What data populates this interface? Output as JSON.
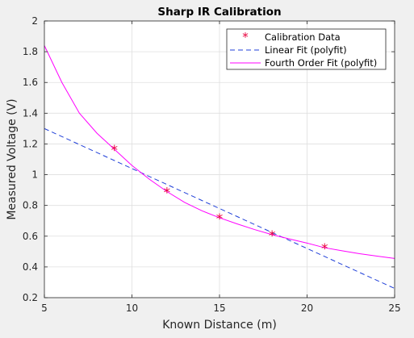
{
  "chart_data": {
    "type": "line",
    "title": "Sharp IR Calibration",
    "xlabel": "Known Distance (m)",
    "ylabel": "Measured Voltage (V)",
    "xlim": [
      5,
      25
    ],
    "ylim": [
      0.2,
      2
    ],
    "xticks": [
      5,
      10,
      15,
      20,
      25
    ],
    "yticks": [
      0.2,
      0.4,
      0.6,
      0.8,
      1,
      1.2,
      1.4,
      1.6,
      1.8,
      2
    ],
    "grid": true,
    "legend_position": "top-right",
    "series": [
      {
        "name": "Calibration Data",
        "kind": "markers",
        "marker": "*",
        "color": "#e8003c",
        "x": [
          9,
          12,
          15,
          18,
          21
        ],
        "y": [
          1.165,
          0.89,
          0.72,
          0.61,
          0.525
        ]
      },
      {
        "name": "Linear Fit (polyfit)",
        "kind": "line",
        "dash": true,
        "color": "#1f3fd8",
        "x": [
          5,
          25
        ],
        "y": [
          1.3,
          0.26
        ]
      },
      {
        "name": "Fourth Order Fit (polyfit)",
        "kind": "line",
        "dash": false,
        "color": "#ff00ff",
        "x": [
          5,
          6,
          7,
          8,
          9,
          10,
          11,
          12,
          13,
          14,
          15,
          16,
          17,
          18,
          19,
          20,
          21,
          22,
          23,
          24,
          25
        ],
        "y": [
          1.84,
          1.6,
          1.4,
          1.27,
          1.165,
          1.06,
          0.97,
          0.89,
          0.82,
          0.765,
          0.72,
          0.68,
          0.643,
          0.61,
          0.582,
          0.555,
          0.525,
          0.505,
          0.486,
          0.47,
          0.455
        ]
      }
    ]
  }
}
